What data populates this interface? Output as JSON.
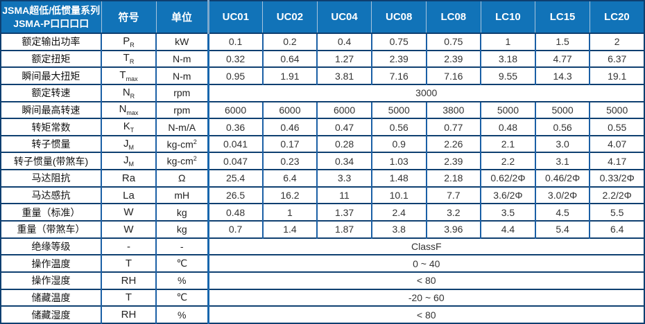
{
  "table": {
    "header": {
      "title_line1": "JSMA超低/低惯量系列",
      "title_line2": "JSMA-P口口口口",
      "symbol_col": "符号",
      "unit_col": "单位",
      "models": [
        "UC01",
        "UC02",
        "UC04",
        "UC08",
        "LC08",
        "LC10",
        "LC15",
        "LC20"
      ]
    },
    "rows": [
      {
        "label": "额定输出功率",
        "symbol": "P",
        "sub": "R",
        "unit": "kW",
        "values": [
          "0.1",
          "0.2",
          "0.4",
          "0.75",
          "0.75",
          "1",
          "1.5",
          "2"
        ]
      },
      {
        "label": "额定扭矩",
        "symbol": "T",
        "sub": "R",
        "unit": "N-m",
        "values": [
          "0.32",
          "0.64",
          "1.27",
          "2.39",
          "2.39",
          "3.18",
          "4.77",
          "6.37"
        ]
      },
      {
        "label": "瞬间最大扭矩",
        "symbol": "T",
        "sub": "max",
        "unit": "N-m",
        "values": [
          "0.95",
          "1.91",
          "3.81",
          "7.16",
          "7.16",
          "9.55",
          "14.3",
          "19.1"
        ]
      },
      {
        "label": "额定转速",
        "symbol": "N",
        "sub": "R",
        "unit": "rpm",
        "span": "3000"
      },
      {
        "label": "瞬间最高转速",
        "symbol": "N",
        "sub": "max",
        "unit": "rpm",
        "values": [
          "6000",
          "6000",
          "6000",
          "5000",
          "3800",
          "5000",
          "5000",
          "5000"
        ]
      },
      {
        "label": "转矩常数",
        "symbol": "K",
        "sub": "T",
        "unit": "N-m/A",
        "values": [
          "0.36",
          "0.46",
          "0.47",
          "0.56",
          "0.77",
          "0.48",
          "0.56",
          "0.55"
        ]
      },
      {
        "label": "转子惯量",
        "symbol": "J",
        "sub": "M",
        "unit": "kg-cm",
        "unit_sup": "2",
        "values": [
          "0.041",
          "0.17",
          "0.28",
          "0.9",
          "2.26",
          "2.1",
          "3.0",
          "4.07"
        ]
      },
      {
        "label": "转子惯量(带煞车)",
        "symbol": "J",
        "sub": "M",
        "unit": "kg-cm",
        "unit_sup": "2",
        "values": [
          "0.047",
          "0.23",
          "0.34",
          "1.03",
          "2.39",
          "2.2",
          "3.1",
          "4.17"
        ]
      },
      {
        "label": "马达阻抗",
        "symbol": "Ra",
        "unit": "Ω",
        "values": [
          "25.4",
          "6.4",
          "3.3",
          "1.48",
          "2.18",
          "0.62/2Φ",
          "0.46/2Φ",
          "0.33/2Φ"
        ]
      },
      {
        "label": "马达感抗",
        "symbol": "La",
        "unit": "mH",
        "values": [
          "26.5",
          "16.2",
          "11",
          "10.1",
          "7.7",
          "3.6/2Φ",
          "3.0/2Φ",
          "2.2/2Φ"
        ]
      },
      {
        "label": "重量（标准）",
        "symbol": "W",
        "unit": "kg",
        "values": [
          "0.48",
          "1",
          "1.37",
          "2.4",
          "3.2",
          "3.5",
          "4.5",
          "5.5"
        ]
      },
      {
        "label": "重量（带煞车）",
        "symbol": "W",
        "unit": "kg",
        "values": [
          "0.7",
          "1.4",
          "1.87",
          "3.8",
          "3.96",
          "4.4",
          "5.4",
          "6.4"
        ]
      },
      {
        "label": "绝缘等级",
        "symbol": "-",
        "unit": "-",
        "span": "ClassF"
      },
      {
        "label": "操作温度",
        "symbol": "T",
        "unit": "℃",
        "span": "0 ~ 40"
      },
      {
        "label": "操作湿度",
        "symbol": "RH",
        "unit": "%",
        "span": "< 80"
      },
      {
        "label": "储藏温度",
        "symbol": "T",
        "unit": "℃",
        "span": "-20 ~ 60"
      },
      {
        "label": "储藏湿度",
        "symbol": "RH",
        "unit": "%",
        "span": "< 80"
      }
    ],
    "colors": {
      "header_bg": "#1173b8",
      "border_dark": "#0e3f70",
      "border_blue": "#1a5fa5",
      "divider_thick": "#1766ad",
      "header_text": "#ffffff",
      "value_text": "#333333"
    }
  }
}
